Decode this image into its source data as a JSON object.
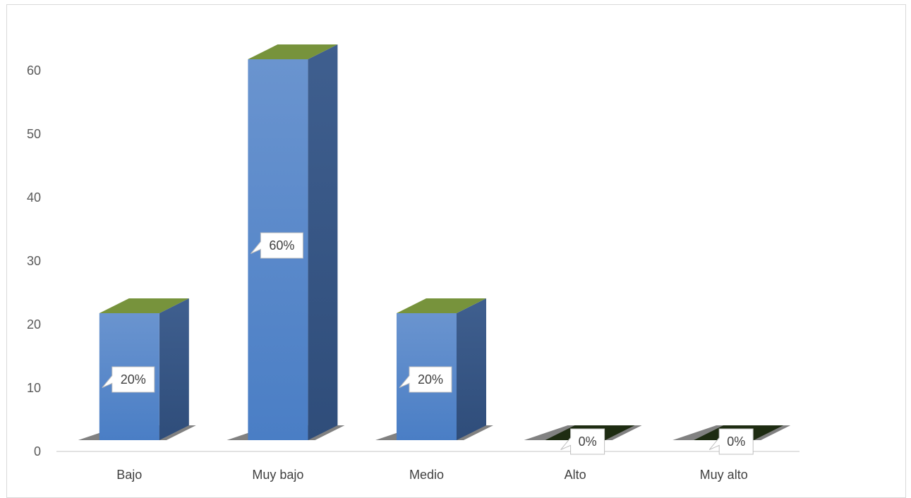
{
  "chart_data": {
    "type": "bar",
    "title": "",
    "xlabel": "",
    "ylabel": "",
    "categories": [
      "Bajo",
      "Muy bajo",
      "Medio",
      "Alto",
      "Muy alto"
    ],
    "values": [
      20,
      60,
      20,
      0,
      0
    ],
    "data_labels": [
      "20%",
      "60%",
      "20%",
      "0%",
      "0%"
    ],
    "ylim": [
      0,
      60
    ],
    "yticks": [
      "0",
      "10",
      "20",
      "30",
      "40",
      "50",
      "60"
    ],
    "grid": false,
    "legend": "none",
    "style": "3d-column",
    "colors": {
      "bar_front": "#4a7ec5",
      "bar_front_top": "#6a94cf",
      "bar_side": "#2f4d7a",
      "bar_top": "#77933c",
      "zero_top": "#1e2c12",
      "shadow": "#1a1a1a",
      "axis": "#d9d9d9"
    }
  }
}
